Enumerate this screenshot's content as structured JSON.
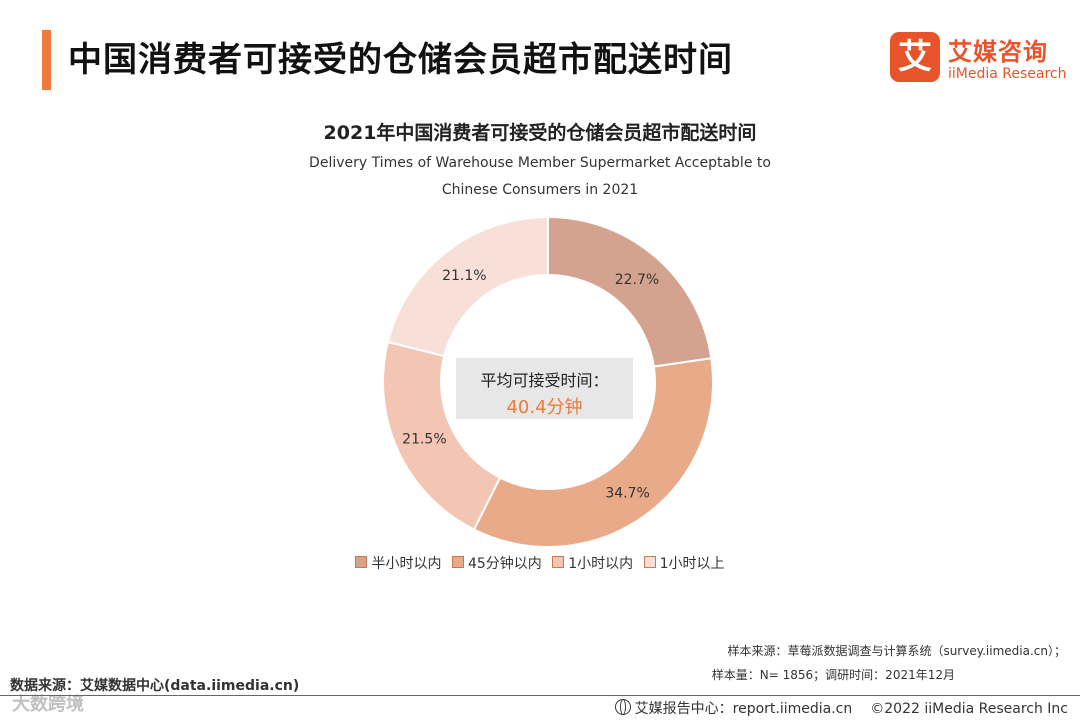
{
  "header": {
    "title": "中国消费者可接受的仓储会员超市配送时间",
    "logo": {
      "mark": "艾",
      "name_cn": "艾媒咨询",
      "name_en": "iiMedia Research"
    }
  },
  "center": {
    "label": "平均可接受时间：",
    "value": "40.4分钟"
  },
  "chart_data": {
    "type": "pie",
    "title": "2021年中国消费者可接受的仓储会员超市配送时间",
    "subtitle_lines": [
      "Delivery Times of Warehouse Member Supermarket Acceptable to",
      "Chinese Consumers in 2021"
    ],
    "categories": [
      "半小时以内",
      "45分钟以内",
      "1小时以内",
      "1小时以上"
    ],
    "values": [
      22.7,
      34.7,
      21.5,
      21.1
    ],
    "value_labels": [
      "22.7%",
      "34.7%",
      "21.5%",
      "21.1%"
    ],
    "colors": [
      "#d4a390",
      "#e8aa88",
      "#f3c6b3",
      "#f8e0d8"
    ],
    "stroke_color": "#c8794f",
    "legend_position": "bottom"
  },
  "footnotes": {
    "sample_source": "样本来源：草莓派数据调查与计算系统（survey.iimedia.cn）；",
    "sample_size": "样本量：N= 1856；调研时间：2021年12月",
    "data_source": "数据来源：艾媒数据中心(data.iimedia.cn)",
    "report_center": "艾媒报告中心：report.iimedia.cn",
    "copyright": "©2022  iiMedia Research  Inc"
  },
  "watermark": "大数跨境"
}
